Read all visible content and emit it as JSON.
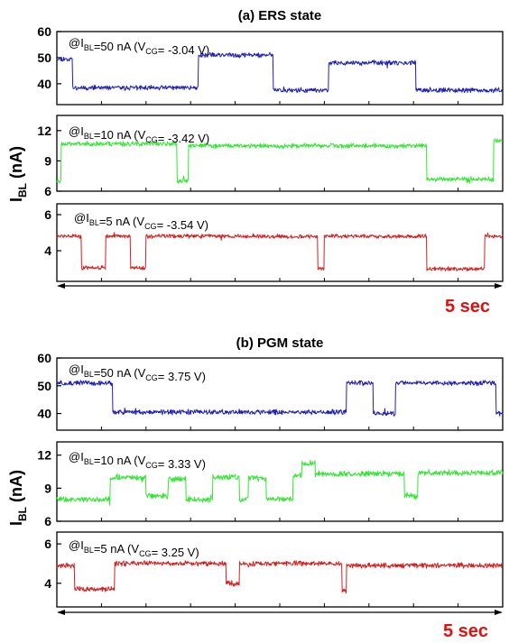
{
  "figure": {
    "timescale_label": "5 sec",
    "ylabel_main": "I",
    "ylabel_sub": "BL",
    "ylabel_unit": " (nA)",
    "colors": {
      "i50": "#1f1fb4",
      "i10": "#33e633",
      "i5": "#d42020",
      "timescale": "#e01010",
      "frame": "#000000"
    }
  },
  "chart_data": [
    {
      "type": "line",
      "title": "(a) ERS state",
      "xlabel": "",
      "ylabel": "IBL (nA)",
      "x_span": "5 sec",
      "panels": [
        {
          "id": "a1",
          "annotation": {
            "pre": "@I",
            "sub1": "BL",
            "mid": "=50 nA (V",
            "sub2": "CG",
            "post": "= -3.04 V)"
          },
          "ylim": [
            32,
            60
          ],
          "yticks": [
            40,
            50,
            60
          ],
          "color": "#1f1fb4",
          "levels": [
            [
              0.0,
              49.5
            ],
            [
              0.035,
              38.5
            ],
            [
              0.317,
              51.0
            ],
            [
              0.485,
              37.5
            ],
            [
              0.61,
              48.0
            ],
            [
              0.805,
              37.5
            ],
            [
              1.0,
              37.5
            ]
          ],
          "noise": 0.7,
          "seed": 11
        },
        {
          "id": "a2",
          "annotation": {
            "pre": "@I",
            "sub1": "BL",
            "mid": "=10 nA (V",
            "sub2": "CG",
            "post": "= -3.42 V)"
          },
          "ylim": [
            6,
            13.5
          ],
          "yticks": [
            6,
            9,
            12
          ],
          "color": "#33e633",
          "levels": [
            [
              0.0,
              7.0
            ],
            [
              0.01,
              10.7
            ],
            [
              0.27,
              7.0
            ],
            [
              0.295,
              10.5
            ],
            [
              0.83,
              7.2
            ],
            [
              0.98,
              11.0
            ],
            [
              1.0,
              11.0
            ]
          ],
          "noise": 0.18,
          "seed": 23
        },
        {
          "id": "a3",
          "annotation": {
            "pre": "@I",
            "sub1": "BL",
            "mid": "=5 nA (V",
            "sub2": "CG",
            "post": "= -3.54 V)"
          },
          "ylim": [
            2.3,
            6.6
          ],
          "yticks": [
            4,
            6
          ],
          "color": "#d42020",
          "levels": [
            [
              0.0,
              4.8
            ],
            [
              0.055,
              3.05
            ],
            [
              0.11,
              4.8
            ],
            [
              0.165,
              3.05
            ],
            [
              0.2,
              4.8
            ],
            [
              0.585,
              3.0
            ],
            [
              0.6,
              4.8
            ],
            [
              0.83,
              3.0
            ],
            [
              0.96,
              4.8
            ],
            [
              1.0,
              4.8
            ]
          ],
          "noise": 0.09,
          "seed": 37
        }
      ]
    },
    {
      "type": "line",
      "title": "(b) PGM state",
      "xlabel": "",
      "ylabel": "IBL (nA)",
      "x_span": "5 sec",
      "panels": [
        {
          "id": "b1",
          "annotation": {
            "pre": "@I",
            "sub1": "BL",
            "mid": "=50 nA (V",
            "sub2": "CG",
            "post": "= 3.75 V)"
          },
          "ylim": [
            34,
            60
          ],
          "yticks": [
            40,
            50,
            60
          ],
          "color": "#1f1fb4",
          "levels": [
            [
              0.0,
              51.0
            ],
            [
              0.125,
              40.5
            ],
            [
              0.65,
              51.0
            ],
            [
              0.71,
              40.0
            ],
            [
              0.76,
              51.0
            ],
            [
              0.985,
              40.0
            ],
            [
              1.0,
              40.0
            ]
          ],
          "noise": 0.7,
          "seed": 51
        },
        {
          "id": "b2",
          "annotation": {
            "pre": "@I",
            "sub1": "BL",
            "mid": "=10 nA (V",
            "sub2": "CG",
            "post": "= 3.33 V)"
          },
          "ylim": [
            6,
            13.2
          ],
          "yticks": [
            6,
            9,
            12
          ],
          "color": "#33e633",
          "levels": [
            [
              0.0,
              8.0
            ],
            [
              0.12,
              10.0
            ],
            [
              0.2,
              8.3
            ],
            [
              0.25,
              9.8
            ],
            [
              0.29,
              8.0
            ],
            [
              0.35,
              10.0
            ],
            [
              0.41,
              8.0
            ],
            [
              0.43,
              9.9
            ],
            [
              0.47,
              8.0
            ],
            [
              0.53,
              10.2
            ],
            [
              0.55,
              11.3
            ],
            [
              0.58,
              10.3
            ],
            [
              0.78,
              8.3
            ],
            [
              0.81,
              10.4
            ],
            [
              1.0,
              10.4
            ]
          ],
          "noise": 0.2,
          "seed": 63
        },
        {
          "id": "b3",
          "annotation": {
            "pre": "@I",
            "sub1": "BL",
            "mid": "=5 nA (V",
            "sub2": "CG",
            "post": "= 3.25 V)"
          },
          "ylim": [
            2.8,
            6.6
          ],
          "yticks": [
            4,
            6
          ],
          "color": "#d42020",
          "levels": [
            [
              0.0,
              4.9
            ],
            [
              0.04,
              3.7
            ],
            [
              0.13,
              5.0
            ],
            [
              0.38,
              4.0
            ],
            [
              0.41,
              5.0
            ],
            [
              0.64,
              3.6
            ],
            [
              0.65,
              4.9
            ],
            [
              1.0,
              4.9
            ]
          ],
          "noise": 0.1,
          "seed": 77
        }
      ]
    }
  ]
}
